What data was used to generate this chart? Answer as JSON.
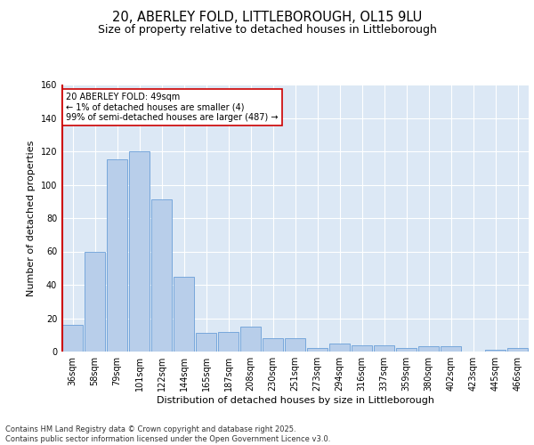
{
  "title": "20, ABERLEY FOLD, LITTLEBOROUGH, OL15 9LU",
  "subtitle": "Size of property relative to detached houses in Littleborough",
  "xlabel": "Distribution of detached houses by size in Littleborough",
  "ylabel": "Number of detached properties",
  "categories": [
    "36sqm",
    "58sqm",
    "79sqm",
    "101sqm",
    "122sqm",
    "144sqm",
    "165sqm",
    "187sqm",
    "208sqm",
    "230sqm",
    "251sqm",
    "273sqm",
    "294sqm",
    "316sqm",
    "337sqm",
    "359sqm",
    "380sqm",
    "402sqm",
    "423sqm",
    "445sqm",
    "466sqm"
  ],
  "values": [
    16,
    60,
    115,
    120,
    91,
    45,
    11,
    12,
    15,
    8,
    8,
    2,
    5,
    4,
    4,
    2,
    3,
    3,
    0,
    1,
    2
  ],
  "bar_color": "#b8ceea",
  "bar_edge_color": "#6a9fd8",
  "highlight_color": "#cc0000",
  "annotation_text": "20 ABERLEY FOLD: 49sqm\n← 1% of detached houses are smaller (4)\n99% of semi-detached houses are larger (487) →",
  "annotation_box_color": "#ffffff",
  "annotation_box_edge": "#cc0000",
  "ylim": [
    0,
    160
  ],
  "yticks": [
    0,
    20,
    40,
    60,
    80,
    100,
    120,
    140,
    160
  ],
  "bg_color": "#dce8f5",
  "fig_bg_color": "#ffffff",
  "footer_text": "Contains HM Land Registry data © Crown copyright and database right 2025.\nContains public sector information licensed under the Open Government Licence v3.0.",
  "title_fontsize": 10.5,
  "subtitle_fontsize": 9,
  "axis_label_fontsize": 8,
  "tick_fontsize": 7,
  "footer_fontsize": 6
}
